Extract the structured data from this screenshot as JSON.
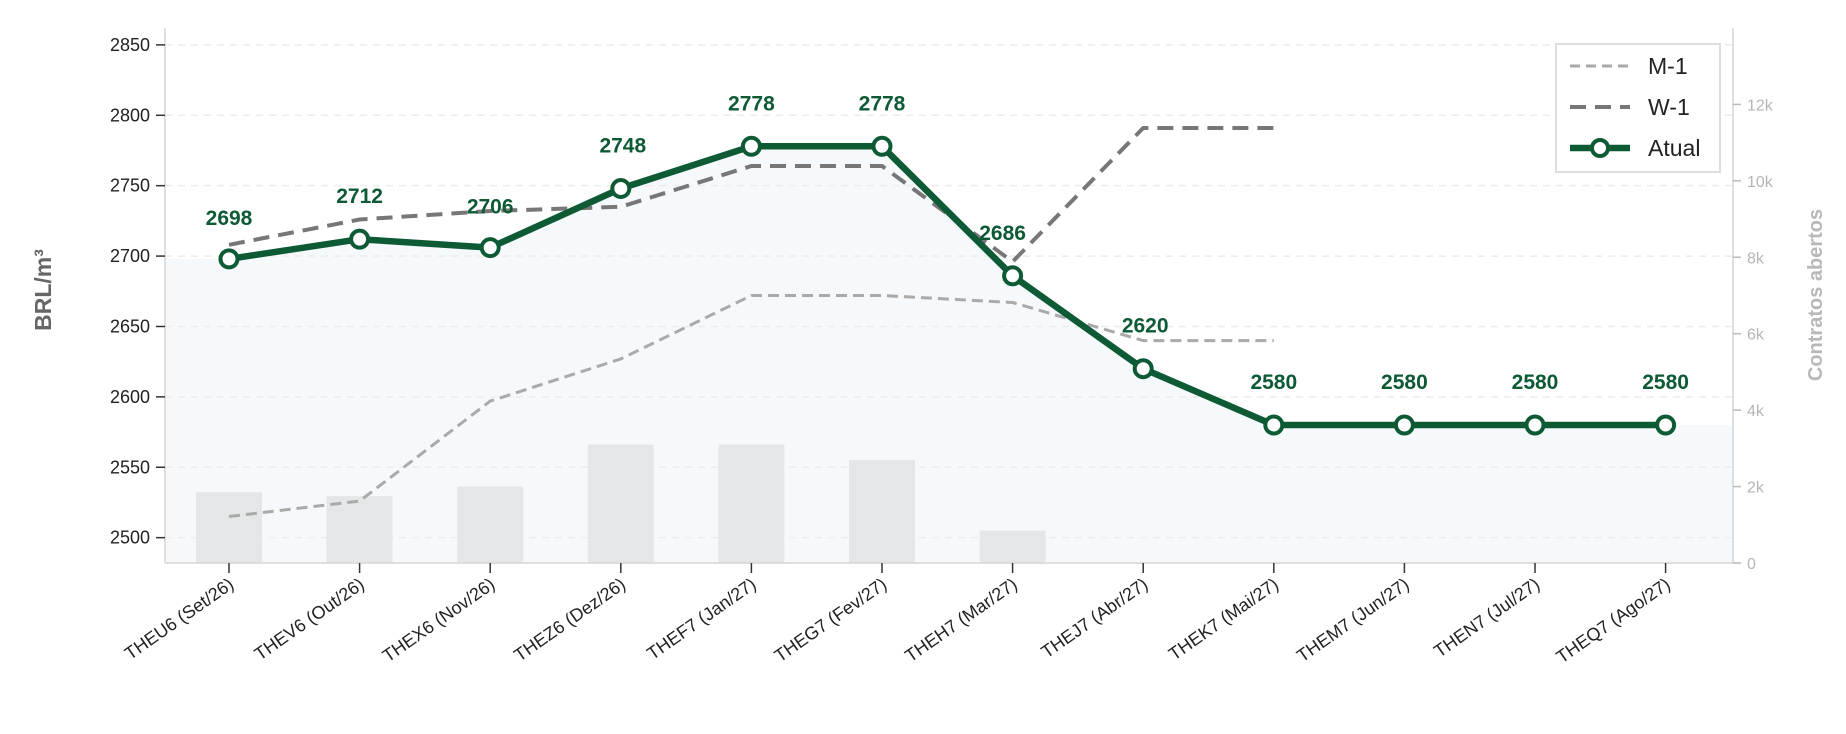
{
  "chart_data": {
    "type": "line",
    "categories": [
      "THEU6 (Set/26)",
      "THEV6 (Out/26)",
      "THEX6 (Nov/26)",
      "THEZ6 (Dez/26)",
      "THEF7 (Jan/27)",
      "THEG7 (Fev/27)",
      "THEH7 (Mar/27)",
      "THEJ7 (Abr/27)",
      "THEK7 (Mai/27)",
      "THEM7 (Jun/27)",
      "THEN7 (Jul/27)",
      "THEQ7 (Ago/27)"
    ],
    "ylabel": "BRL/m³",
    "y2label": "Contratos abertos",
    "ylim": [
      2482,
      2862
    ],
    "y2lim": [
      0,
      14000
    ],
    "yticks": [
      2500,
      2550,
      2600,
      2650,
      2700,
      2750,
      2800,
      2850
    ],
    "y2ticks": [
      0,
      2000,
      4000,
      6000,
      8000,
      10000,
      12000
    ],
    "y2tick_labels": [
      "0",
      "2k",
      "4k",
      "6k",
      "8k",
      "10k",
      "12k"
    ],
    "grid": true,
    "legend_position": "top-right",
    "series": [
      {
        "name": "M-1",
        "style": "dashed-light",
        "color": "#aaaaaa",
        "values": [
          2515,
          2526,
          2597,
          2627,
          2672,
          2672,
          2667,
          2640,
          2640,
          null,
          null,
          null
        ]
      },
      {
        "name": "W-1",
        "style": "dashed-dark",
        "color": "#777777",
        "values": [
          2708,
          2726,
          2732,
          2735,
          2764,
          2764,
          2696,
          2791,
          2791,
          null,
          null,
          null
        ]
      },
      {
        "name": "Atual",
        "style": "solid-markers",
        "color": "#0d5a35",
        "values": [
          2698,
          2712,
          2706,
          2748,
          2778,
          2778,
          2686,
          2620,
          2580,
          2580,
          2580,
          2580
        ],
        "labels": [
          "2698",
          "2712",
          "2706",
          "2748",
          "2778",
          "2778",
          "2686",
          "2620",
          "2580",
          "2580",
          "2580",
          "2580"
        ]
      }
    ],
    "open_interest": [
      1850,
      1750,
      2000,
      3100,
      3100,
      2700,
      850,
      null,
      null,
      null,
      null,
      null
    ]
  }
}
